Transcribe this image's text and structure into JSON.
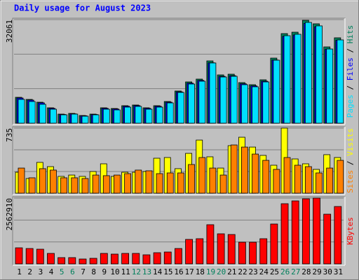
{
  "title": "Daily usage for August 2023",
  "separator": " / ",
  "chart_data": [
    {
      "type": "bar",
      "ylim": [
        0,
        32061
      ],
      "yticks": [
        32061
      ],
      "grid_divisions": 3,
      "series": [
        {
          "name": "Hits",
          "color": "#00805c",
          "values": [
            8015,
            7365,
            6499,
            4766,
            2816,
            3033,
            2383,
            2816,
            4766,
            4549,
            5416,
            5632,
            4766,
            5416,
            6716,
            9965,
            12781,
            13648,
            19280,
            14948,
            15164,
            12565,
            11915,
            13431,
            20147,
            27729,
            28162,
            31845,
            30762,
            23613,
            26429
          ]
        },
        {
          "name": "Files",
          "color": "#0000ff",
          "values": [
            7800,
            7150,
            6300,
            4600,
            2700,
            2900,
            2300,
            2700,
            4600,
            4400,
            5250,
            5450,
            4600,
            5250,
            6500,
            9700,
            12400,
            13250,
            18700,
            14500,
            14700,
            12200,
            11550,
            13000,
            19550,
            26900,
            27300,
            30900,
            29850,
            22900,
            25650
          ]
        },
        {
          "name": "Pages",
          "color": "#00e0ff",
          "values": [
            7370,
            6720,
            5850,
            4330,
            2600,
            2820,
            2170,
            2600,
            4330,
            4120,
            4980,
            5200,
            4330,
            4980,
            6280,
            9530,
            12130,
            13000,
            18640,
            14300,
            14520,
            11920,
            11270,
            12780,
            19500,
            27080,
            27520,
            31200,
            30120,
            22960,
            25780
          ]
        }
      ]
    },
    {
      "type": "bar",
      "ylim": [
        0,
        735
      ],
      "yticks": [
        735
      ],
      "grid_divisions": 3,
      "series": [
        {
          "name": "Visits",
          "color": "#ffff00",
          "values": [
            237,
            166,
            348,
            300,
            190,
            205,
            190,
            245,
            332,
            190,
            237,
            237,
            245,
            395,
            403,
            277,
            450,
            600,
            411,
            284,
            537,
            632,
            521,
            427,
            316,
            735,
            387,
            332,
            269,
            435,
            403
          ]
        },
        {
          "name": "Sites",
          "color": "#ff8000",
          "values": [
            284,
            174,
            277,
            261,
            174,
            174,
            166,
            205,
            198,
            205,
            221,
            261,
            253,
            221,
            229,
            229,
            324,
            403,
            284,
            205,
            545,
            521,
            442,
            371,
            269,
            403,
            316,
            300,
            229,
            284,
            371
          ]
        }
      ]
    },
    {
      "type": "bar",
      "ylim": [
        0,
        2562910
      ],
      "yticks": [
        2562910
      ],
      "grid_divisions": 3,
      "categories": [
        "1",
        "2",
        "3",
        "4",
        "5",
        "6",
        "7",
        "8",
        "9",
        "10",
        "11",
        "12",
        "13",
        "14",
        "15",
        "16",
        "17",
        "18",
        "19",
        "20",
        "21",
        "22",
        "23",
        "24",
        "25",
        "26",
        "27",
        "28",
        "29",
        "30",
        "31"
      ],
      "weekends": [
        "5",
        "6",
        "12",
        "13",
        "19",
        "20",
        "26",
        "27"
      ],
      "weekend_color": "#00805c",
      "label_color": "#000000",
      "series": [
        {
          "name": "KBytes",
          "color": "#ff0000",
          "values": [
            627100,
            599830,
            572570,
            408980,
            245390,
            245390,
            190860,
            218120,
            408980,
            381710,
            408980,
            408980,
            354450,
            436240,
            463510,
            599830,
            954280,
            981540,
            1526840,
            1172400,
            1145130,
            845220,
            845220,
            981540,
            1554110,
            2344790,
            2453850,
            2535650,
            2562910,
            1935820,
            2235730
          ]
        }
      ]
    }
  ]
}
